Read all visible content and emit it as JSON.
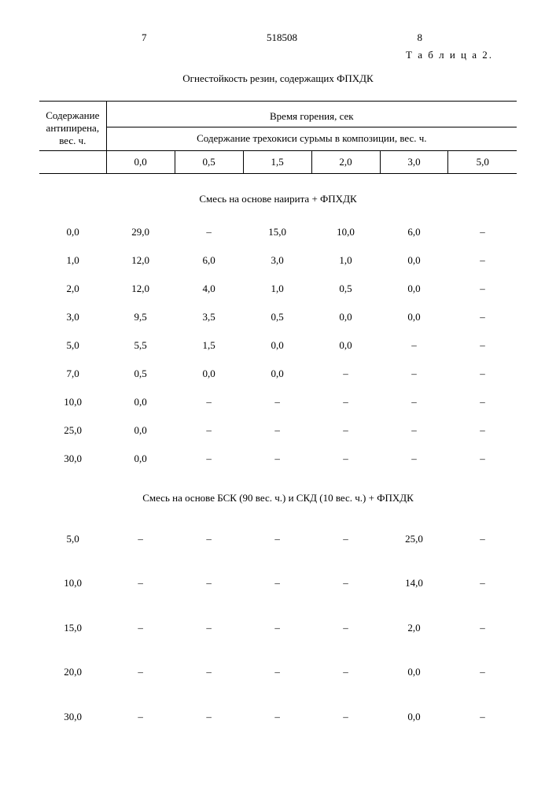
{
  "page": {
    "left_num": "7",
    "doc_num": "518508",
    "right_num": "8",
    "table_label": "Т а б л и ц а 2.",
    "caption": "Огнестойкость резин, содержащих ФПХДК"
  },
  "header": {
    "row_label_line1": "Содержание",
    "row_label_line2": "антипирена,",
    "row_label_line3": "вес. ч.",
    "group_title": "Время горения, сек",
    "sub_title": "Содержание трехокиси сурьмы в композиции, вес. ч.",
    "cols": [
      "0,0",
      "0,5",
      "1,5",
      "2,0",
      "3,0",
      "5,0"
    ]
  },
  "sections": [
    {
      "title": "Смесь на основе наирита + ФПХДК",
      "rows": [
        {
          "h": "0,0",
          "c": [
            "29,0",
            "–",
            "15,0",
            "10,0",
            "6,0",
            "–"
          ]
        },
        {
          "h": "1,0",
          "c": [
            "12,0",
            "6,0",
            "3,0",
            "1,0",
            "0,0",
            "–"
          ]
        },
        {
          "h": "2,0",
          "c": [
            "12,0",
            "4,0",
            "1,0",
            "0,5",
            "0,0",
            "–"
          ]
        },
        {
          "h": "3,0",
          "c": [
            "9,5",
            "3,5",
            "0,5",
            "0,0",
            "0,0",
            "–"
          ]
        },
        {
          "h": "5,0",
          "c": [
            "5,5",
            "1,5",
            "0,0",
            "0,0",
            "–",
            "–"
          ]
        },
        {
          "h": "7,0",
          "c": [
            "0,5",
            "0,0",
            "0,0",
            "–",
            "–",
            "–"
          ]
        },
        {
          "h": "10,0",
          "c": [
            "0,0",
            "–",
            "–",
            "–",
            "–",
            "–"
          ]
        },
        {
          "h": "25,0",
          "c": [
            "0,0",
            "–",
            "–",
            "–",
            "–",
            "–"
          ]
        },
        {
          "h": "30,0",
          "c": [
            "0,0",
            "–",
            "–",
            "–",
            "–",
            "–"
          ]
        }
      ]
    },
    {
      "title": "Смесь на основе БСК (90 вес. ч.) и СКД (10 вес. ч.) + ФПХДК",
      "rows": [
        {
          "h": "5,0",
          "c": [
            "–",
            "–",
            "–",
            "–",
            "25,0",
            "–"
          ]
        },
        {
          "h": "10,0",
          "c": [
            "–",
            "–",
            "–",
            "–",
            "14,0",
            "–"
          ]
        },
        {
          "h": "15,0",
          "c": [
            "–",
            "–",
            "–",
            "–",
            "2,0",
            "–"
          ]
        },
        {
          "h": "20,0",
          "c": [
            "–",
            "–",
            "–",
            "–",
            "0,0",
            "–"
          ]
        },
        {
          "h": "30,0",
          "c": [
            "–",
            "–",
            "–",
            "–",
            "0,0",
            "–"
          ]
        }
      ]
    }
  ],
  "style": {
    "font_family": "Times New Roman",
    "font_size_pt": 13,
    "text_color": "#000000",
    "background_color": "#ffffff",
    "border_color": "#000000"
  }
}
